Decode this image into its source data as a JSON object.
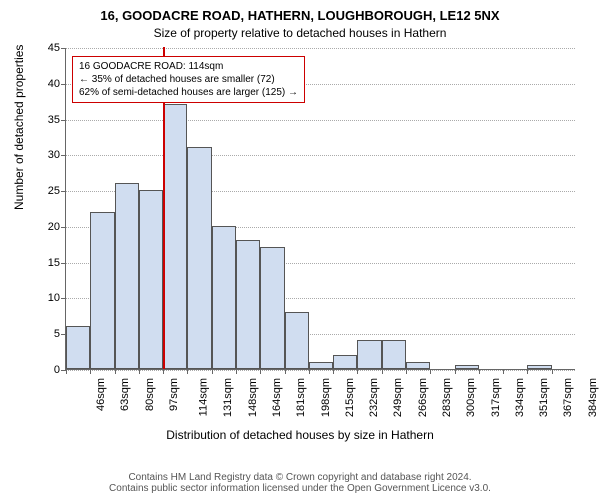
{
  "title_line1": "16, GOODACRE ROAD, HATHERN, LOUGHBOROUGH, LE12 5NX",
  "title_line2": "Size of property relative to detached houses in Hathern",
  "ylabel": "Number of detached properties",
  "xlabel": "Distribution of detached houses by size in Hathern",
  "footer_line1": "Contains HM Land Registry data © Crown copyright and database right 2024.",
  "footer_line2": "Contains public sector information licensed under the Open Government Licence v3.0.",
  "chart": {
    "type": "histogram",
    "ylim": [
      0,
      45
    ],
    "yticks": [
      0,
      5,
      10,
      15,
      20,
      25,
      30,
      35,
      40,
      45
    ],
    "x_categories": [
      "46sqm",
      "63sqm",
      "80sqm",
      "97sqm",
      "114sqm",
      "131sqm",
      "148sqm",
      "164sqm",
      "181sqm",
      "198sqm",
      "215sqm",
      "232sqm",
      "249sqm",
      "266sqm",
      "283sqm",
      "300sqm",
      "317sqm",
      "334sqm",
      "351sqm",
      "367sqm",
      "384sqm"
    ],
    "values": [
      6,
      22,
      26,
      25,
      37,
      31,
      20,
      18,
      17,
      8,
      1,
      2,
      4,
      4,
      1,
      0,
      0.5,
      0,
      0,
      0.5,
      0
    ],
    "bar_fill": "#d0ddf0",
    "bar_border": "#555555",
    "background": "#ffffff",
    "grid_color": "#aaaaaa",
    "axis_color": "#666666",
    "reference_line": {
      "x_index": 4,
      "color": "#cc0000",
      "width": 2
    },
    "annotation": {
      "line1": "16 GOODACRE ROAD: 114sqm",
      "line2": "← 35% of detached houses are smaller (72)",
      "line3": "62% of semi-detached houses are larger (125) →",
      "border_color": "#cc0000"
    }
  },
  "fonts": {
    "title": 13,
    "subtitle": 12,
    "axis_label": 12,
    "tick": 11,
    "annot": 10,
    "footer": 10
  }
}
